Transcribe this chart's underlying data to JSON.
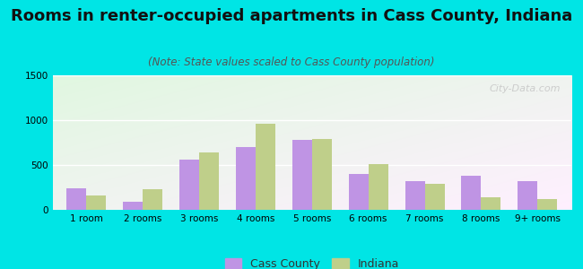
{
  "title": "Rooms in renter-occupied apartments in Cass County, Indiana",
  "subtitle": "(Note: State values scaled to Cass County population)",
  "categories": [
    "1 room",
    "2 rooms",
    "3 rooms",
    "4 rooms",
    "5 rooms",
    "6 rooms",
    "7 rooms",
    "8 rooms",
    "9+ rooms"
  ],
  "cass_county": [
    240,
    90,
    560,
    700,
    780,
    400,
    320,
    380,
    320
  ],
  "indiana": [
    160,
    230,
    640,
    960,
    790,
    510,
    290,
    145,
    120
  ],
  "cass_color": "#bf94e4",
  "indiana_color": "#bfcf8a",
  "background_outer": "#00e5e5",
  "ylim": [
    0,
    1500
  ],
  "yticks": [
    0,
    500,
    1000,
    1500
  ],
  "title_fontsize": 13,
  "subtitle_fontsize": 8.5,
  "tick_fontsize": 7.5,
  "legend_fontsize": 9,
  "watermark": "City-Data.com"
}
